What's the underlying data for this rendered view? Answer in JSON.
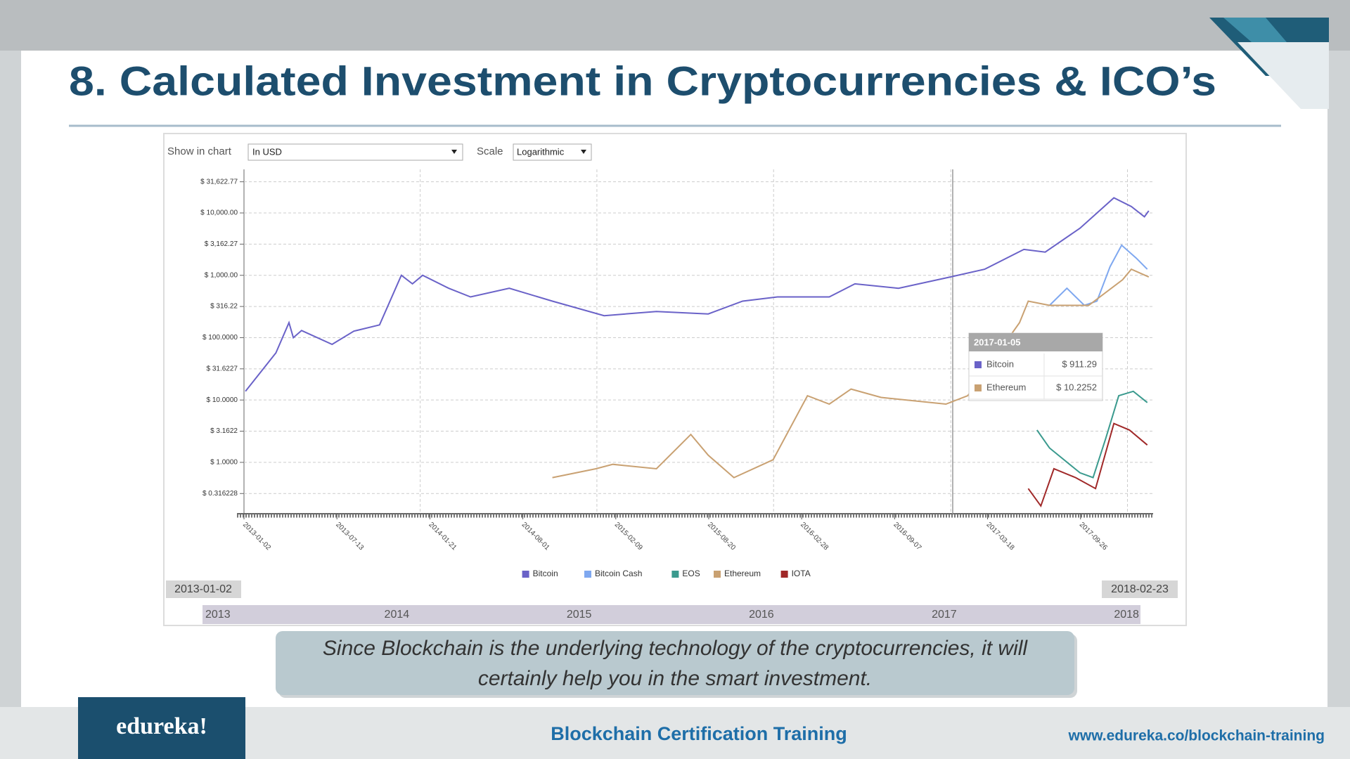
{
  "slide": {
    "title": "8. Calculated Investment in Cryptocurrencies & ICO’s",
    "caption": [
      "Since Blockchain is the underlying technology of the cryptocurrencies, it will",
      "certainly help you in the smart investment."
    ],
    "footer": {
      "logo": "edureka!",
      "course": "Blockchain Certification Training",
      "url": "www.edureka.co/blockchain-training"
    }
  },
  "controls": {
    "show_label": "Show in chart",
    "show_value": "In USD",
    "scale_label": "Scale",
    "scale_value": "Logarithmic"
  },
  "chart_data": {
    "type": "line",
    "log_scale": true,
    "grid": true,
    "legend": "bottom",
    "xlim": [
      "2013-01-02",
      "2018-02-23"
    ],
    "ylim": [
      0.15,
      50000
    ],
    "yticks": [
      {
        "value": 31622.77,
        "label": "$ 31,622.77"
      },
      {
        "value": 10000,
        "label": "$ 10,000.00"
      },
      {
        "value": 3162.27,
        "label": "$ 3,162.27"
      },
      {
        "value": 1000,
        "label": "$ 1,000.00"
      },
      {
        "value": 316.22,
        "label": "$ 316.22"
      },
      {
        "value": 100,
        "label": "$ 100.0000"
      },
      {
        "value": 31.6227,
        "label": "$ 31.6227"
      },
      {
        "value": 10,
        "label": "$ 10.0000"
      },
      {
        "value": 3.1622,
        "label": "$ 3.1622"
      },
      {
        "value": 1,
        "label": "$ 1.0000"
      },
      {
        "value": 0.316228,
        "label": "$ 0.316228"
      }
    ],
    "xticks": [
      "2013-01-02",
      "2013-07-13",
      "2014-01-21",
      "2014-08-01",
      "2015-02-09",
      "2015-08-20",
      "2016-02-28",
      "2016-09-07",
      "2017-03-18",
      "2017-09-26"
    ],
    "series": [
      {
        "name": "Bitcoin",
        "color": "#6a62c8",
        "x": [
          "2013-01-05",
          "2013-03-09",
          "2013-04-05",
          "2013-04-14",
          "2013-05-01",
          "2013-07-03",
          "2013-08-17",
          "2013-10-09",
          "2013-11-23",
          "2013-12-16",
          "2014-01-06",
          "2014-03-01",
          "2014-04-15",
          "2014-07-04",
          "2014-10-01",
          "2015-01-16",
          "2015-05-04",
          "2015-08-19",
          "2015-10-29",
          "2016-01-09",
          "2016-04-25",
          "2016-06-17",
          "2016-09-15",
          "2016-12-31",
          "2017-03-12",
          "2017-06-01",
          "2017-07-15",
          "2017-09-25",
          "2017-12-04",
          "2018-01-09",
          "2018-02-05",
          "2018-02-14"
        ],
        "values": [
          13.8,
          57,
          174,
          100,
          130,
          78,
          127,
          160,
          1000,
          730,
          1000,
          620,
          450,
          620,
          385,
          225,
          263,
          240,
          385,
          450,
          450,
          730,
          620,
          940,
          1250,
          2600,
          2360,
          5700,
          17500,
          12700,
          8700,
          10800
        ]
      },
      {
        "name": "Bitcoin Cash",
        "color": "#7fa8f0",
        "x": [
          "2017-07-24",
          "2017-08-29",
          "2017-10-04",
          "2017-10-30",
          "2017-11-26",
          "2017-12-20",
          "2018-01-19",
          "2018-02-11"
        ],
        "values": [
          330,
          620,
          330,
          385,
          1370,
          3040,
          1890,
          1250
        ]
      },
      {
        "name": "EOS",
        "color": "#3a9a8e",
        "x": [
          "2017-06-28",
          "2017-07-24",
          "2017-09-25",
          "2017-10-22",
          "2017-11-17",
          "2017-12-14",
          "2018-01-13",
          "2018-02-11"
        ],
        "values": [
          3.3,
          1.7,
          0.68,
          0.57,
          2.4,
          11.7,
          13.8,
          9.1
        ]
      },
      {
        "name": "Ethereum",
        "color": "#c9a172",
        "x": [
          "2014-10-01",
          "2014-12-30",
          "2015-02-03",
          "2015-05-04",
          "2015-07-14",
          "2015-08-19",
          "2015-10-11",
          "2015-12-31",
          "2016-03-11",
          "2016-04-25",
          "2016-06-09",
          "2016-08-10",
          "2016-12-22",
          "2017-02-05",
          "2017-05-23",
          "2017-06-10",
          "2017-07-24",
          "2017-10-13",
          "2017-12-22",
          "2018-01-09",
          "2018-02-14"
        ],
        "values": [
          0.57,
          0.79,
          0.93,
          0.79,
          2.8,
          1.3,
          0.57,
          1.1,
          11.7,
          8.6,
          15,
          11,
          8.6,
          11.7,
          174,
          385,
          330,
          330,
          850,
          1250,
          940
        ]
      },
      {
        "name": "IOTA",
        "color": "#a02828",
        "x": [
          "2017-06-10",
          "2017-07-06",
          "2017-08-02",
          "2017-09-16",
          "2017-10-27",
          "2017-12-04",
          "2018-01-05",
          "2018-02-11"
        ],
        "values": [
          0.38,
          0.2,
          0.79,
          0.57,
          0.38,
          4.2,
          3.3,
          1.9
        ]
      }
    ],
    "tooltip": {
      "date": "2017-01-05",
      "items": [
        {
          "name": "Bitcoin",
          "value": "$ 911.29"
        },
        {
          "name": "Ethereum",
          "value": "$ 10.2252"
        }
      ]
    },
    "range": {
      "start": "2013-01-02",
      "end": "2018-02-23",
      "years": [
        "2013",
        "2014",
        "2015",
        "2016",
        "2017",
        "2018"
      ]
    }
  }
}
